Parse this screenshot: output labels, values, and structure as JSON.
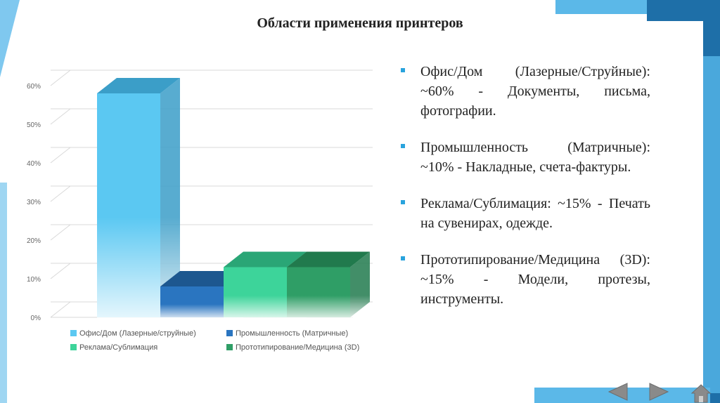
{
  "slide": {
    "title": "Области применения принтеров"
  },
  "bullets": [
    {
      "text": "Офис/Дом (Лазерные/Струйные): ~60% - Документы, письма, фотографии."
    },
    {
      "text": "Промышленность (Матричные): ~10% - Накладные, счета-фактуры."
    },
    {
      "text": "Реклама/Сублимация: ~15% - Печать на сувенирах, одежде."
    },
    {
      "text": "Прототипирование/Медицина (3D): ~15% - Модели, протезы, инструменты."
    }
  ],
  "navigation": {
    "prev_icon": "left-arrow-icon",
    "next_icon": "right-arrow-icon",
    "home_icon": "home-icon"
  },
  "colors": {
    "accent": "#29a3dd",
    "decor_blue": "#5bb8e8",
    "decor_dark": "#1e6fa8"
  },
  "chart_data": {
    "type": "bar",
    "ylim": [
      0,
      60
    ],
    "yticks": [
      "0%",
      "10%",
      "20%",
      "30%",
      "40%",
      "50%",
      "60%"
    ],
    "series": [
      {
        "name": "Офис/Дом (Лазерные/струйные)",
        "value": 58,
        "color": "#5bc8f2",
        "dark": "#3b9ec8"
      },
      {
        "name": "Промышленность (Матричные)",
        "value": 8,
        "color": "#2a75c0",
        "dark": "#1d578f"
      },
      {
        "name": "Реклама/Сублимация",
        "value": 13,
        "color": "#3dd49a",
        "dark": "#2aa676"
      },
      {
        "name": "Прототипирование/Медицина (3D)",
        "value": 13,
        "color": "#2f9e66",
        "dark": "#217a4d"
      }
    ]
  }
}
